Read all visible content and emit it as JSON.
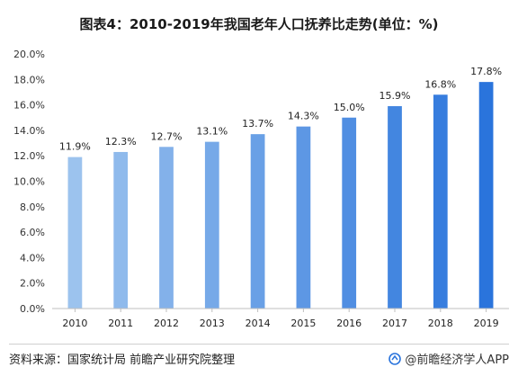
{
  "title": "图表4：2010-2019年我国老年人口抚养比走势(单位：%)",
  "source": "资料来源：国家统计局 前瞻产业研究院整理",
  "brand": "@前瞻经济学人APP",
  "colors": {
    "bar_start": "#9cc3ee",
    "bar_end": "#2a74dc",
    "axis": "#bfbfbf"
  },
  "chart_data": {
    "type": "bar",
    "title": "图表4：2010-2019年我国老年人口抚养比走势(单位：%)",
    "categories": [
      "2010",
      "2011",
      "2012",
      "2013",
      "2014",
      "2015",
      "2016",
      "2017",
      "2018",
      "2019"
    ],
    "values": [
      11.9,
      12.3,
      12.7,
      13.1,
      13.7,
      14.3,
      15.0,
      15.9,
      16.8,
      17.8
    ],
    "value_labels": [
      "11.9%",
      "12.3%",
      "12.7%",
      "13.1%",
      "13.7%",
      "14.3%",
      "15.0%",
      "15.9%",
      "16.8%",
      "17.8%"
    ],
    "y_ticks": [
      0,
      2,
      4,
      6,
      8,
      10,
      12,
      14,
      16,
      18,
      20
    ],
    "y_tick_labels": [
      "0.0%",
      "2.0%",
      "4.0%",
      "6.0%",
      "8.0%",
      "10.0%",
      "12.0%",
      "14.0%",
      "16.0%",
      "18.0%",
      "20.0%"
    ],
    "ylim": [
      0,
      20
    ],
    "xlabel": "",
    "ylabel": "",
    "grid": false,
    "legend": "none"
  }
}
